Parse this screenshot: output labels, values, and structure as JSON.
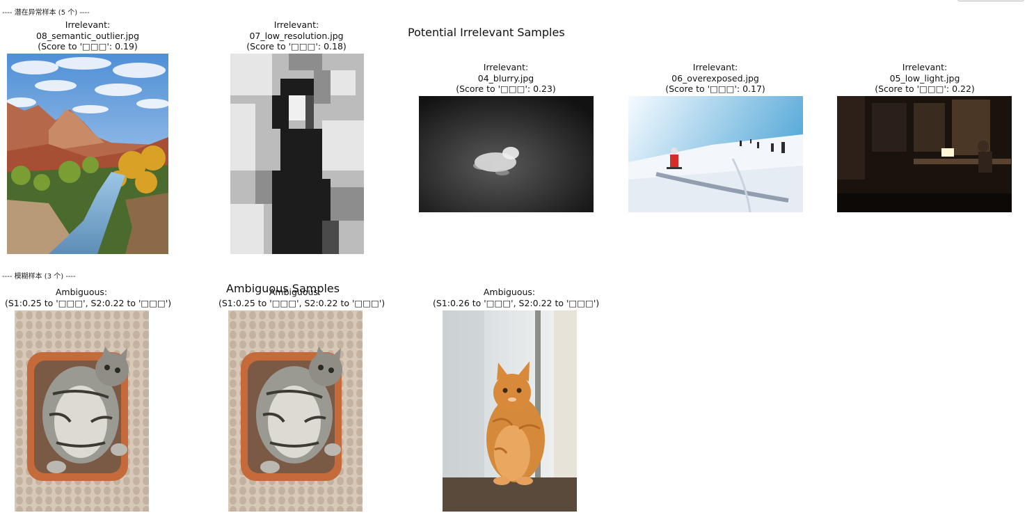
{
  "section_irrelevant": {
    "label": "---- 潜在异常样本 (5 个) ----"
  },
  "section_ambiguous": {
    "label": "---- 模糊样本 (3 个) ----"
  },
  "figures": {
    "irrelevant_title": "Potential Irrelevant Samples",
    "ambiguous_title": "Ambiguous Samples"
  },
  "irrelevant_samples": [
    {
      "type": "Irrelevant:",
      "file": "08_semantic_outlier.jpg",
      "score": "(Score to '□□□': 0.19)",
      "image": "mountain-canyon-river"
    },
    {
      "type": "Irrelevant:",
      "file": "07_low_resolution.jpg",
      "score": "(Score to '□□□': 0.18)",
      "image": "pixelated-portrait"
    },
    {
      "type": "Irrelevant:",
      "file": "04_blurry.jpg",
      "score": "(Score to '□□□': 0.23)",
      "image": "blurry-dog-dark"
    },
    {
      "type": "Irrelevant:",
      "file": "06_overexposed.jpg",
      "score": "(Score to '□□□': 0.17)",
      "image": "skiers-snow-slope"
    },
    {
      "type": "Irrelevant:",
      "file": "05_low_light.jpg",
      "score": "(Score to '□□□': 0.22)",
      "image": "dark-room-laptop"
    }
  ],
  "ambiguous_samples": [
    {
      "type": "Ambiguous:",
      "scores": "(S1:0.25 to '□□□', S2:0.22 to '□□□')",
      "image": "tabby-cat-basket"
    },
    {
      "type": "Ambiguous:",
      "scores": "(S1:0.25 to '□□□', S2:0.22 to '□□□')",
      "image": "tabby-cat-basket"
    },
    {
      "type": "Ambiguous:",
      "scores": "(S1:0.26 to '□□□', S2:0.22 to '□□□')",
      "image": "orange-cat-window"
    }
  ]
}
